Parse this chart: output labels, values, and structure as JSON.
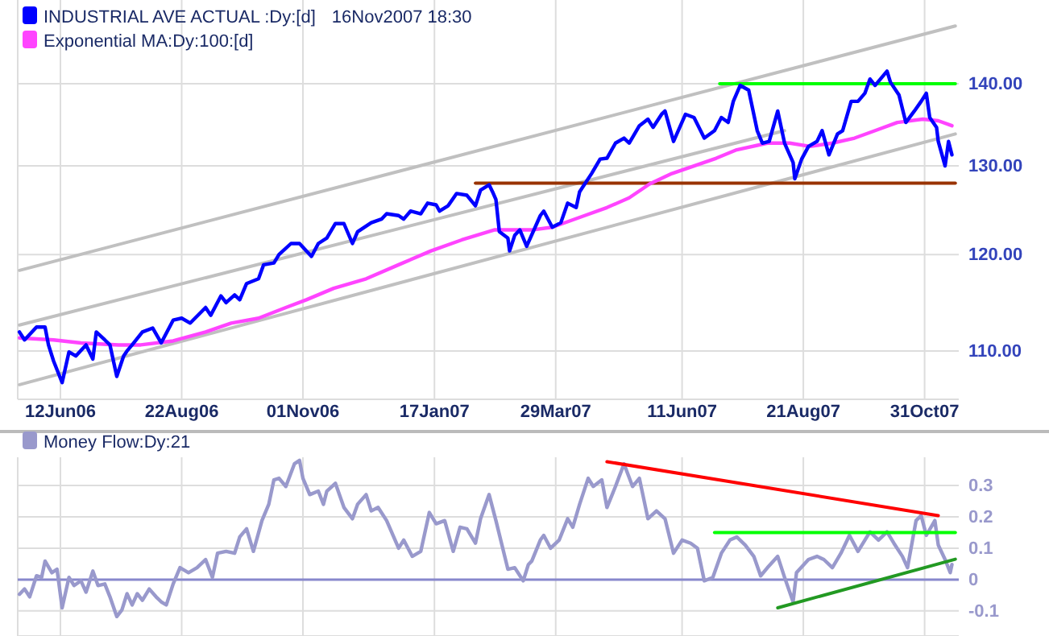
{
  "chart_data": [
    {
      "type": "line",
      "log": "y",
      "grid": true,
      "legend": "top left",
      "annotations": [
        "16Nov2007 18:30"
      ],
      "xlim": [
        "2006-05-18",
        "2007-11-20"
      ],
      "xticks": [
        {
          "value": "2006-06-12",
          "label": "12Jun06"
        },
        {
          "value": "2006-08-22",
          "label": "22Aug06"
        },
        {
          "value": "2006-11-01",
          "label": "01Nov06"
        },
        {
          "value": "2007-01-17",
          "label": "17Jan07"
        },
        {
          "value": "2007-03-29",
          "label": "29Mar07"
        },
        {
          "value": "2007-06-11",
          "label": "11Jun07"
        },
        {
          "value": "2007-08-21",
          "label": "21Aug07"
        },
        {
          "value": "2007-10-31",
          "label": "31Oct07"
        }
      ],
      "ylim": [
        105.3,
        151
      ],
      "yticks": [
        {
          "value": 110,
          "label": "110.00"
        },
        {
          "value": 120,
          "label": "120.00"
        },
        {
          "value": 130,
          "label": "130.00"
        },
        {
          "value": 140,
          "label": "140.00"
        }
      ],
      "series": [
        {
          "type": "line",
          "color": "#c0c0c0",
          "x": [
            "2006-05-19",
            "2007-11-18"
          ],
          "values": [
            118.3,
            147.5
          ]
        },
        {
          "type": "line",
          "color": "#c0c0c0",
          "x": [
            "2006-05-19",
            "2007-08-10"
          ],
          "values": [
            112.6,
            134.2
          ]
        },
        {
          "type": "line",
          "color": "#c0c0c0",
          "x": [
            "2006-05-19",
            "2007-11-18"
          ],
          "values": [
            106.7,
            133.8
          ]
        },
        {
          "type": "line",
          "color": "#00ff00",
          "x": [
            "2007-07-03",
            "2007-11-18"
          ],
          "values": [
            140,
            140
          ]
        },
        {
          "type": "line",
          "color": "#993300",
          "x": [
            "2007-02-10",
            "2007-11-18"
          ],
          "values": [
            128,
            128
          ]
        },
        {
          "type": "line",
          "name": "Exponential MA:Dy:100:[d]",
          "color": "#ff44ff",
          "x": [
            "2006-05-19",
            "2006-06-08",
            "2006-06-24",
            "2006-07-16",
            "2006-07-29",
            "2006-08-17",
            "2006-09-05",
            "2006-09-20",
            "2006-10-06",
            "2006-10-22",
            "2006-11-03",
            "2006-11-19",
            "2006-12-08",
            "2006-12-27",
            "2007-01-15",
            "2007-02-02",
            "2007-02-21",
            "2007-03-15",
            "2007-03-27",
            "2007-04-15",
            "2007-04-28",
            "2007-05-11",
            "2007-05-23",
            "2007-06-05",
            "2007-06-18",
            "2007-07-01",
            "2007-07-13",
            "2007-07-31",
            "2007-08-13",
            "2007-08-25",
            "2007-09-07",
            "2007-09-20",
            "2007-10-02",
            "2007-10-15",
            "2007-10-30",
            "2007-11-08",
            "2007-11-16"
          ],
          "values": [
            111.3,
            111.1,
            110.8,
            110.6,
            110.6,
            111.0,
            111.9,
            112.8,
            113.3,
            114.4,
            115.2,
            116.4,
            117.4,
            118.9,
            120.4,
            121.6,
            122.7,
            122.7,
            123.0,
            124.3,
            125.2,
            126.3,
            127.9,
            129.1,
            130.0,
            130.9,
            131.9,
            132.7,
            132.7,
            132.3,
            132.7,
            133.3,
            134.2,
            135.2,
            135.6,
            135.4,
            134.8
          ]
        },
        {
          "type": "line",
          "name": "INDUSTRIAL AVE ACTUAL :Dy:[d]",
          "color": "#0000ff",
          "x": [
            "2006-05-19",
            "2006-05-22",
            "2006-05-29",
            "2006-06-03",
            "2006-06-05",
            "2006-06-08",
            "2006-06-13",
            "2006-06-17",
            "2006-06-21",
            "2006-06-27",
            "2006-07-01",
            "2006-07-03",
            "2006-07-08",
            "2006-07-11",
            "2006-07-15",
            "2006-07-19",
            "2006-07-21",
            "2006-07-24",
            "2006-07-30",
            "2006-08-05",
            "2006-08-10",
            "2006-08-17",
            "2006-08-22",
            "2006-08-27",
            "2006-09-05",
            "2006-09-08",
            "2006-09-14",
            "2006-09-17",
            "2006-09-22",
            "2006-09-25",
            "2006-09-29",
            "2006-10-06",
            "2006-10-09",
            "2006-10-15",
            "2006-10-18",
            "2006-10-25",
            "2006-10-30",
            "2006-11-06",
            "2006-11-10",
            "2006-11-15",
            "2006-11-20",
            "2006-11-25",
            "2006-11-30",
            "2006-12-03",
            "2006-12-11",
            "2006-12-17",
            "2006-12-20",
            "2006-12-27",
            "2006-12-30",
            "2007-01-03",
            "2007-01-09",
            "2007-01-13",
            "2007-01-18",
            "2007-01-20",
            "2007-01-25",
            "2007-01-30",
            "2007-02-05",
            "2007-02-10",
            "2007-02-13",
            "2007-02-18",
            "2007-02-20",
            "2007-02-22",
            "2007-02-24",
            "2007-03-01",
            "2007-03-02",
            "2007-03-05",
            "2007-03-08",
            "2007-03-12",
            "2007-03-20",
            "2007-03-22",
            "2007-03-27",
            "2007-04-01",
            "2007-04-05",
            "2007-04-10",
            "2007-04-12",
            "2007-04-19",
            "2007-04-24",
            "2007-04-28",
            "2007-05-03",
            "2007-05-08",
            "2007-05-11",
            "2007-05-17",
            "2007-05-22",
            "2007-05-25",
            "2007-05-30",
            "2007-06-01",
            "2007-06-06",
            "2007-06-13",
            "2007-06-18",
            "2007-06-24",
            "2007-06-30",
            "2007-07-04",
            "2007-07-08",
            "2007-07-11",
            "2007-07-15",
            "2007-07-20",
            "2007-07-25",
            "2007-07-28",
            "2007-08-01",
            "2007-08-06",
            "2007-08-10",
            "2007-08-15",
            "2007-08-16",
            "2007-08-20",
            "2007-08-24",
            "2007-08-29",
            "2007-09-01",
            "2007-09-05",
            "2007-09-10",
            "2007-09-13",
            "2007-09-18",
            "2007-09-22",
            "2007-09-26",
            "2007-09-29",
            "2007-10-02",
            "2007-10-09",
            "2007-10-11",
            "2007-10-16",
            "2007-10-20",
            "2007-10-25",
            "2007-10-29",
            "2007-11-01",
            "2007-11-03",
            "2007-11-07",
            "2007-11-08",
            "2007-11-12",
            "2007-11-14",
            "2007-11-16"
          ],
          "values": [
            111.9,
            111.1,
            112.4,
            112.4,
            110.6,
            109.0,
            106.9,
            109.9,
            109.5,
            110.6,
            109.2,
            111.9,
            111.1,
            110.6,
            107.5,
            109.5,
            110.0,
            110.6,
            111.9,
            112.3,
            110.8,
            113.1,
            113.3,
            112.8,
            114.4,
            113.6,
            115.6,
            114.9,
            115.7,
            115.2,
            116.9,
            117.4,
            118.9,
            119.1,
            120.0,
            121.2,
            121.2,
            119.8,
            121.2,
            121.8,
            123.4,
            123.4,
            121.2,
            122.5,
            123.5,
            123.9,
            124.5,
            124.3,
            123.9,
            124.8,
            124.5,
            125.7,
            125.5,
            124.8,
            125.4,
            126.8,
            126.6,
            125.4,
            127.2,
            127.8,
            127.0,
            126.1,
            122.5,
            121.8,
            120.4,
            122.1,
            122.7,
            120.9,
            124.3,
            124.8,
            123.0,
            123.5,
            125.7,
            125.2,
            127.0,
            129.1,
            130.8,
            130.9,
            132.7,
            133.3,
            132.7,
            134.8,
            135.6,
            134.6,
            136.2,
            136.6,
            132.9,
            136.2,
            135.8,
            133.3,
            134.2,
            135.8,
            135.2,
            137.8,
            139.8,
            139.2,
            134.2,
            132.7,
            132.9,
            136.6,
            132.7,
            130.4,
            128.5,
            130.8,
            132.3,
            132.9,
            134.2,
            131.3,
            133.8,
            134.2,
            137.8,
            137.8,
            138.8,
            140.6,
            139.8,
            141.6,
            140.2,
            138.6,
            135.2,
            136.6,
            137.8,
            138.8,
            135.8,
            134.6,
            132.9,
            130.0,
            132.9,
            131.3
          ]
        }
      ]
    },
    {
      "type": "line",
      "grid": true,
      "legend": "top left",
      "tick_labels": "y",
      "xlim": [
        "2006-05-18",
        "2007-11-20"
      ],
      "xticks": [
        {
          "value": "2006-06-12",
          "label": null
        },
        {
          "value": "2006-08-22",
          "label": null
        },
        {
          "value": "2006-11-01",
          "label": null
        },
        {
          "value": "2007-01-17",
          "label": null
        },
        {
          "value": "2007-03-29",
          "label": null
        },
        {
          "value": "2007-06-11",
          "label": null
        },
        {
          "value": "2007-08-21",
          "label": null
        },
        {
          "value": "2007-10-31",
          "label": null
        }
      ],
      "ylim": [
        -0.18,
        0.39
      ],
      "yticks": [
        -0.1,
        0,
        0.1,
        0.2,
        0.3
      ],
      "ref_lines": [
        {
          "axis": "y",
          "value": 0,
          "color": "#8888cc"
        }
      ],
      "series": [
        {
          "type": "line",
          "name": "Money Flow:Dy:21",
          "color": "#9999cc",
          "x": [
            "2006-05-19",
            "2006-05-22",
            "2006-05-25",
            "2006-05-29",
            "2006-06-01",
            "2006-06-03",
            "2006-06-07",
            "2006-06-10",
            "2006-06-13",
            "2006-06-17",
            "2006-06-20",
            "2006-06-24",
            "2006-06-27",
            "2006-07-01",
            "2006-07-04",
            "2006-07-08",
            "2006-07-11",
            "2006-07-15",
            "2006-07-18",
            "2006-07-21",
            "2006-07-24",
            "2006-07-27",
            "2006-07-30",
            "2006-08-03",
            "2006-08-07",
            "2006-08-10",
            "2006-08-13",
            "2006-08-17",
            "2006-08-21",
            "2006-08-26",
            "2006-08-31",
            "2006-09-05",
            "2006-09-09",
            "2006-09-12",
            "2006-09-17",
            "2006-09-22",
            "2006-09-25",
            "2006-09-29",
            "2006-10-03",
            "2006-10-08",
            "2006-10-12",
            "2006-10-15",
            "2006-10-18",
            "2006-10-22",
            "2006-10-27",
            "2006-10-30",
            "2006-11-01",
            "2006-11-05",
            "2006-11-10",
            "2006-11-13",
            "2006-11-15",
            "2006-11-20",
            "2006-11-25",
            "2006-11-30",
            "2006-12-03",
            "2006-12-08",
            "2006-12-11",
            "2006-12-15",
            "2006-12-20",
            "2006-12-27",
            "2006-12-30",
            "2007-01-04",
            "2007-01-09",
            "2007-01-14",
            "2007-01-18",
            "2007-01-23",
            "2007-01-28",
            "2007-02-01",
            "2007-02-05",
            "2007-02-10",
            "2007-02-13",
            "2007-02-18",
            "2007-02-22",
            "2007-03-01",
            "2007-03-05",
            "2007-03-10",
            "2007-03-13",
            "2007-03-15",
            "2007-03-20",
            "2007-03-22",
            "2007-03-26",
            "2007-03-31",
            "2007-04-05",
            "2007-04-08",
            "2007-04-12",
            "2007-04-17",
            "2007-04-20",
            "2007-04-25",
            "2007-04-28",
            "2007-05-03",
            "2007-05-08",
            "2007-05-13",
            "2007-05-17",
            "2007-05-22",
            "2007-05-27",
            "2007-06-01",
            "2007-06-06",
            "2007-06-11",
            "2007-06-16",
            "2007-06-20",
            "2007-06-24",
            "2007-06-29",
            "2007-07-04",
            "2007-07-09",
            "2007-07-13",
            "2007-07-18",
            "2007-07-23",
            "2007-07-27",
            "2007-07-31",
            "2007-08-06",
            "2007-08-10",
            "2007-08-15",
            "2007-08-17",
            "2007-08-24",
            "2007-08-29",
            "2007-09-02",
            "2007-09-07",
            "2007-09-12",
            "2007-09-17",
            "2007-09-22",
            "2007-09-29",
            "2007-10-04",
            "2007-10-09",
            "2007-10-13",
            "2007-10-18",
            "2007-10-21",
            "2007-10-26",
            "2007-10-29",
            "2007-11-01",
            "2007-11-06",
            "2007-11-08",
            "2007-11-12",
            "2007-11-15",
            "2007-11-16"
          ],
          "values": [
            -0.047,
            -0.03,
            -0.055,
            0.012,
            0.007,
            0.059,
            0.022,
            0.033,
            -0.09,
            0.007,
            -0.019,
            -0.004,
            -0.04,
            0.027,
            -0.019,
            -0.014,
            -0.055,
            -0.118,
            -0.097,
            -0.045,
            -0.081,
            -0.045,
            -0.066,
            -0.03,
            -0.055,
            -0.071,
            -0.081,
            -0.014,
            0.038,
            0.022,
            0.038,
            0.064,
            0.007,
            0.084,
            0.09,
            0.084,
            0.136,
            0.162,
            0.09,
            0.188,
            0.24,
            0.318,
            0.323,
            0.297,
            0.369,
            0.38,
            0.323,
            0.271,
            0.282,
            0.24,
            0.282,
            0.307,
            0.23,
            0.194,
            0.24,
            0.271,
            0.219,
            0.23,
            0.188,
            0.1,
            0.126,
            0.074,
            0.09,
            0.214,
            0.178,
            0.188,
            0.09,
            0.167,
            0.162,
            0.116,
            0.194,
            0.271,
            0.188,
            0.033,
            0.038,
            -0.004,
            0.048,
            0.059,
            0.126,
            0.141,
            0.1,
            0.126,
            0.194,
            0.167,
            0.24,
            0.323,
            0.297,
            0.318,
            0.23,
            0.297,
            0.369,
            0.297,
            0.323,
            0.194,
            0.219,
            0.194,
            0.084,
            0.126,
            0.116,
            0.1,
            -0.004,
            0.007,
            0.084,
            0.126,
            0.136,
            0.11,
            0.074,
            0.012,
            0.038,
            0.074,
            0.007,
            -0.071,
            0.022,
            0.064,
            0.074,
            0.064,
            0.038,
            0.084,
            0.141,
            0.09,
            0.152,
            0.126,
            0.152,
            0.116,
            0.074,
            0.038,
            0.188,
            0.204,
            0.141,
            0.188,
            0.11,
            0.064,
            0.022,
            0.048
          ]
        },
        {
          "type": "line",
          "color": "#ff0000",
          "x": [
            "2007-04-28",
            "2007-11-08"
          ],
          "values": [
            0.376,
            0.204
          ]
        },
        {
          "type": "line",
          "color": "#00ff00",
          "x": [
            "2007-06-30",
            "2007-11-18"
          ],
          "values": [
            0.15,
            0.15
          ]
        },
        {
          "type": "line",
          "color": "#229922",
          "x": [
            "2007-08-06",
            "2007-11-18"
          ],
          "values": [
            -0.09,
            0.065
          ]
        }
      ]
    }
  ]
}
